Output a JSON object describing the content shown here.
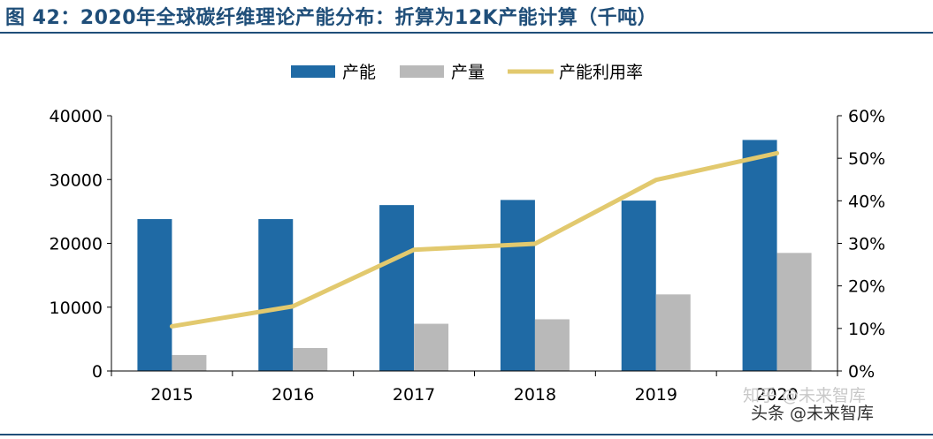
{
  "title": "图 42：2020年全球碳纤维理论产能分布：折算为12K产能计算（千吨）",
  "watermark": {
    "line1": "知乎 @未来智库",
    "line2": "头条 @未来智库"
  },
  "colors": {
    "capacity": "#1f6aa5",
    "output": "#b9b9b9",
    "utilization": "#e2c96e",
    "title": "#1f4e79"
  },
  "chart_data": {
    "type": "bar",
    "categories": [
      "2015",
      "2016",
      "2017",
      "2018",
      "2019",
      "2020"
    ],
    "series": [
      {
        "name": "产能",
        "type": "bar",
        "axis": "left",
        "values": [
          23800,
          23800,
          26000,
          26800,
          26700,
          36200
        ]
      },
      {
        "name": "产量",
        "type": "bar",
        "axis": "left",
        "values": [
          2500,
          3600,
          7400,
          8100,
          12000,
          18500
        ]
      },
      {
        "name": "产能利用率",
        "type": "line",
        "axis": "right",
        "values": [
          0.105,
          0.152,
          0.285,
          0.299,
          0.449,
          0.512
        ]
      }
    ],
    "ylim": [
      0,
      40000
    ],
    "y_ticks": [
      "0",
      "10000",
      "20000",
      "30000",
      "40000"
    ],
    "y2lim": [
      0,
      0.6
    ],
    "y2_ticks": [
      "0%",
      "10%",
      "20%",
      "30%",
      "40%",
      "50%",
      "60%"
    ],
    "legend_position": "top-center",
    "grid": false
  }
}
